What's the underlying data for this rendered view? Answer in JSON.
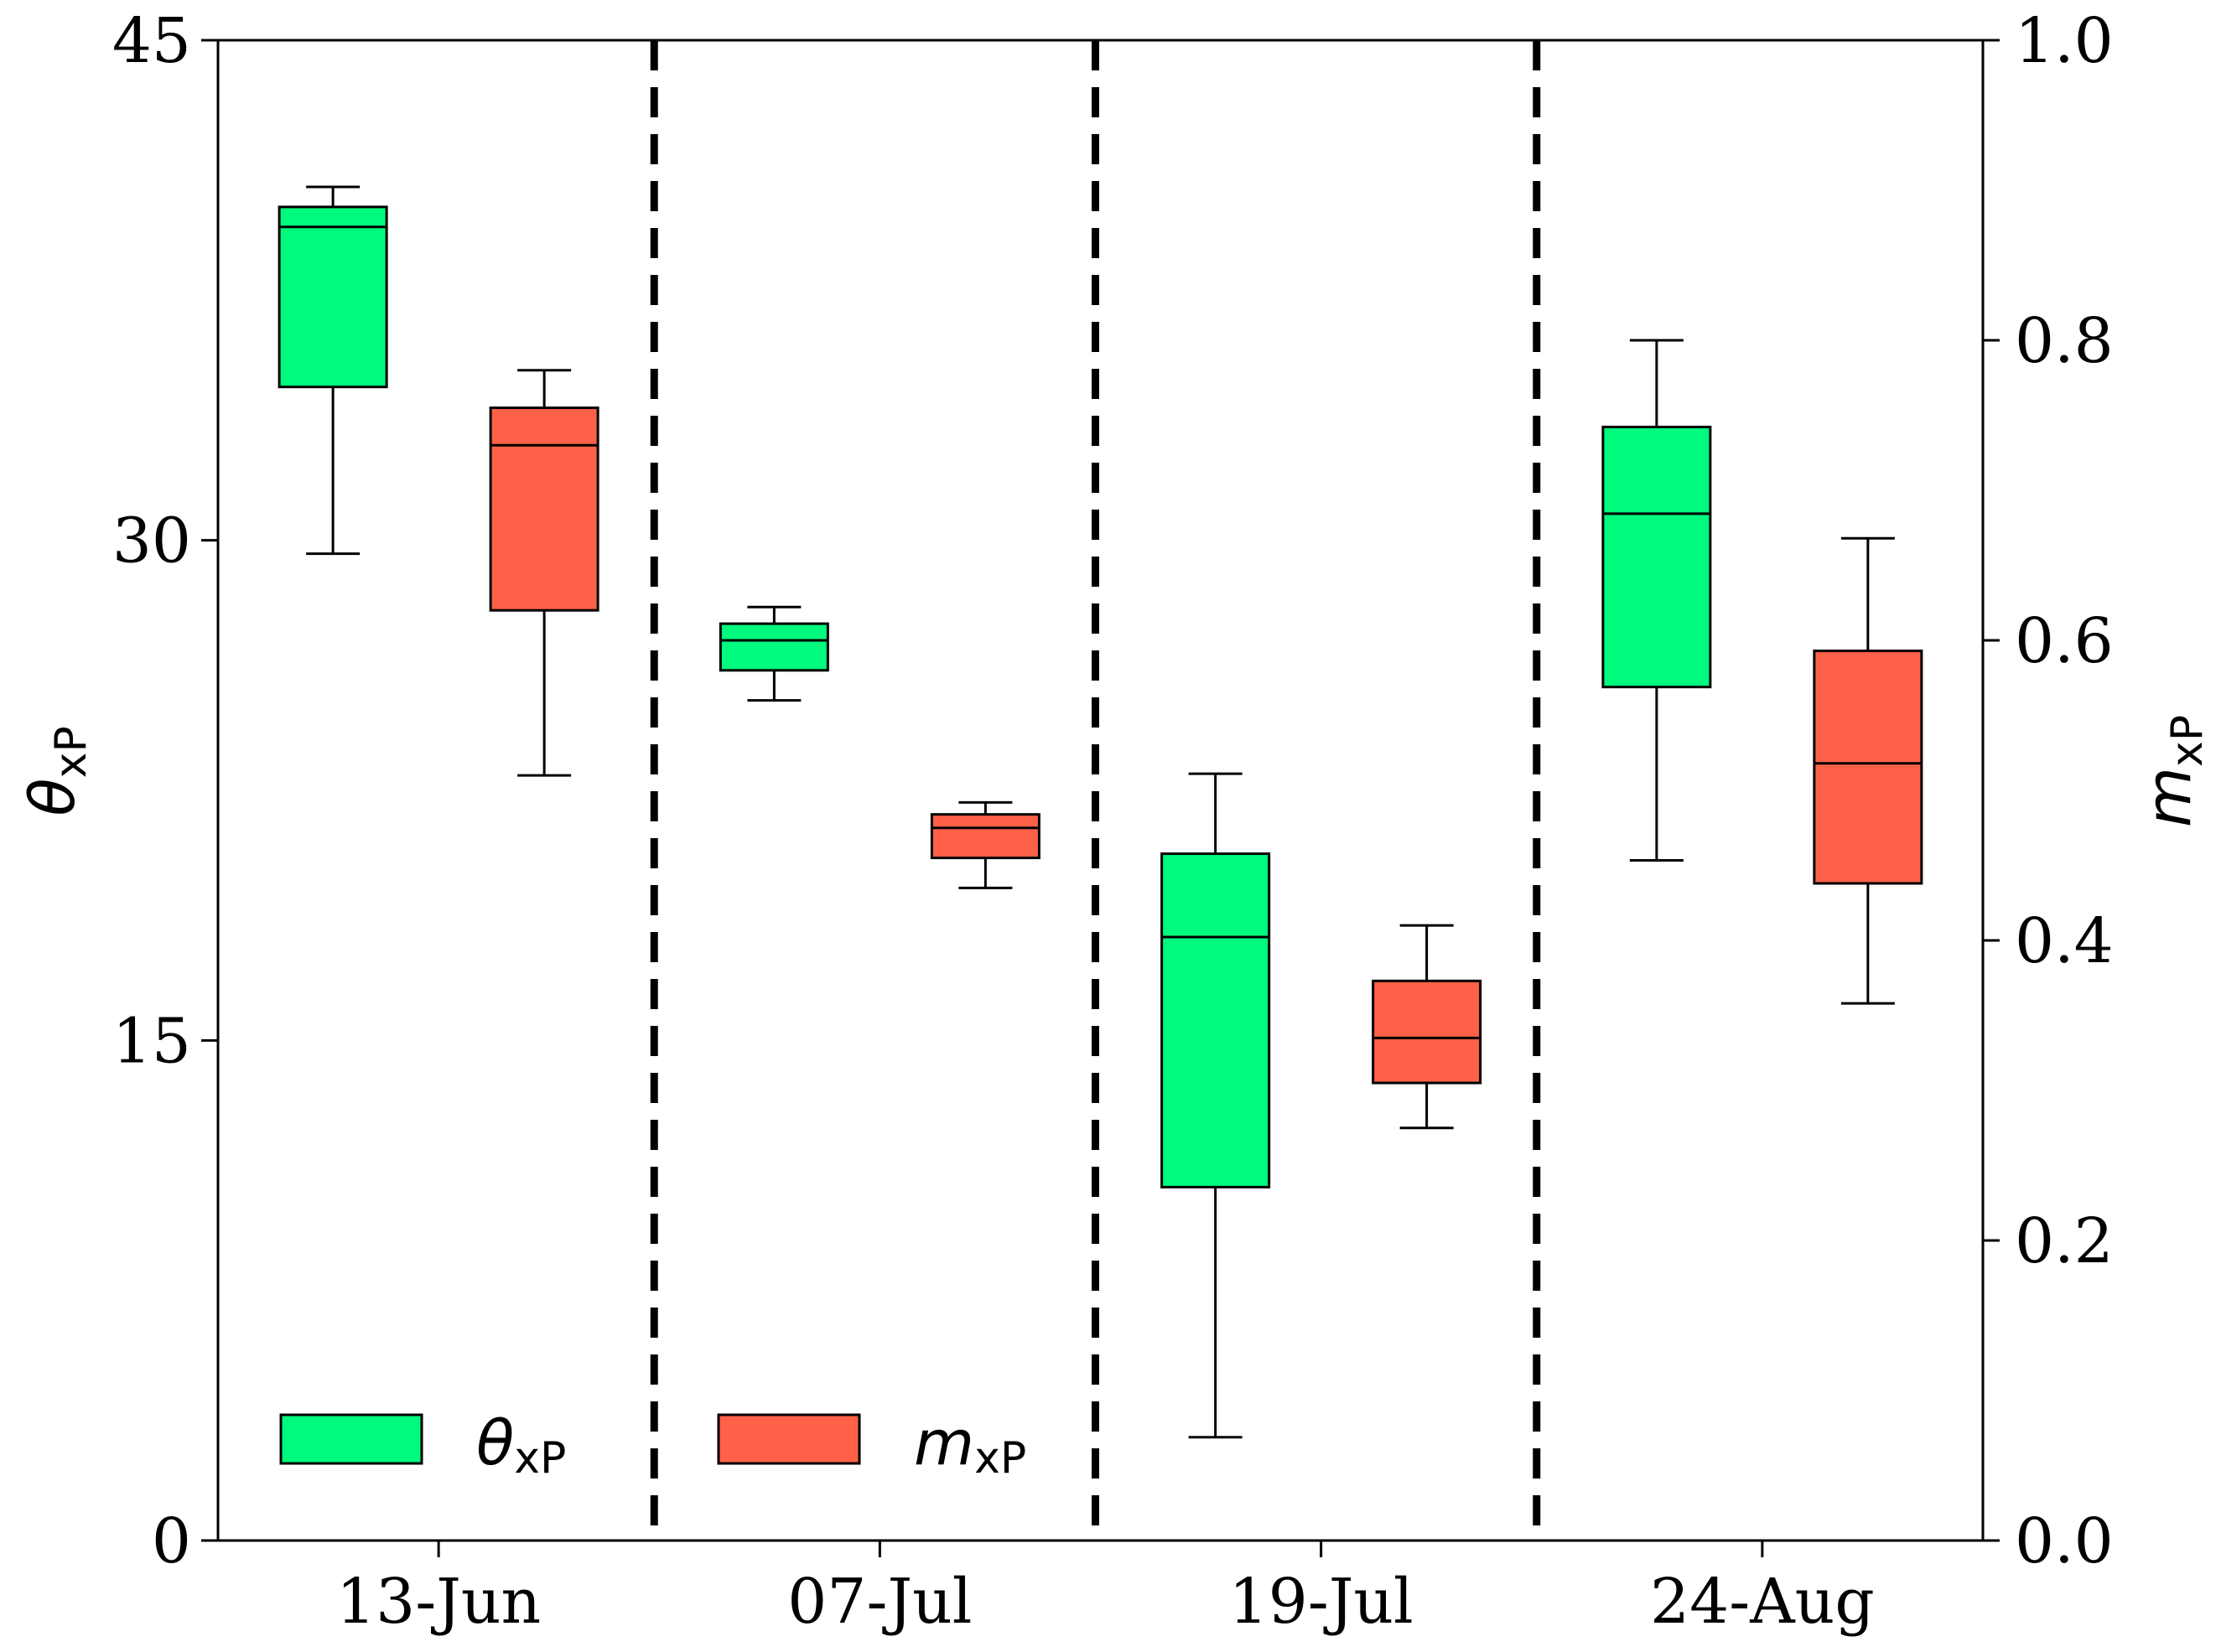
{
  "chart_data": {
    "type": "box",
    "categories": [
      "13-Jun",
      "07-Jul",
      "19-Jul",
      "24-Aug"
    ],
    "left_axis": {
      "label_symbol": "θ",
      "label_sub": "xP",
      "ylim": [
        0,
        45
      ],
      "ticks": [
        0,
        15,
        30,
        45
      ],
      "tick_labels": [
        "0",
        "15",
        "30",
        "45"
      ]
    },
    "right_axis": {
      "label_symbol": "m",
      "label_sub": "xP",
      "ylim": [
        0.0,
        1.0
      ],
      "ticks": [
        0.0,
        0.2,
        0.4,
        0.6,
        0.8,
        1.0
      ],
      "tick_labels": [
        "0.0",
        "0.2",
        "0.4",
        "0.6",
        "0.8",
        "1.0"
      ]
    },
    "series": [
      {
        "name": "θxP",
        "axis": "left",
        "color": "#00fa7d",
        "boxes": [
          {
            "category": "13-Jun",
            "whisker_low": 29.6,
            "q1": 34.6,
            "median": 39.4,
            "q3": 40.0,
            "whisker_high": 40.6
          },
          {
            "category": "07-Jul",
            "whisker_low": 25.2,
            "q1": 26.1,
            "median": 27.0,
            "q3": 27.5,
            "whisker_high": 28.0
          },
          {
            "category": "19-Jul",
            "whisker_low": 3.1,
            "q1": 10.6,
            "median": 18.1,
            "q3": 20.6,
            "whisker_high": 23.0
          },
          {
            "category": "24-Aug",
            "whisker_low": 20.4,
            "q1": 25.6,
            "median": 30.8,
            "q3": 33.4,
            "whisker_high": 36.0
          }
        ]
      },
      {
        "name": "mxP",
        "axis": "right",
        "color": "#fe6148",
        "boxes": [
          {
            "category": "13-Jun",
            "whisker_low": 0.51,
            "q1": 0.62,
            "median": 0.73,
            "q3": 0.755,
            "whisker_high": 0.78
          },
          {
            "category": "07-Jul",
            "whisker_low": 0.435,
            "q1": 0.455,
            "median": 0.475,
            "q3": 0.484,
            "whisker_high": 0.492
          },
          {
            "category": "19-Jul",
            "whisker_low": 0.275,
            "q1": 0.305,
            "median": 0.335,
            "q3": 0.373,
            "whisker_high": 0.41
          },
          {
            "category": "24-Aug",
            "whisker_low": 0.358,
            "q1": 0.438,
            "median": 0.518,
            "q3": 0.593,
            "whisker_high": 0.668
          }
        ]
      }
    ],
    "legend": {
      "position": "bottom-left",
      "entries": [
        {
          "symbol": "θ",
          "sub": "xP",
          "color": "#00fa7d"
        },
        {
          "symbol": "m",
          "sub": "xP",
          "color": "#fe6148"
        }
      ]
    },
    "separators": "dashed vertical lines between categories",
    "grid": false
  }
}
